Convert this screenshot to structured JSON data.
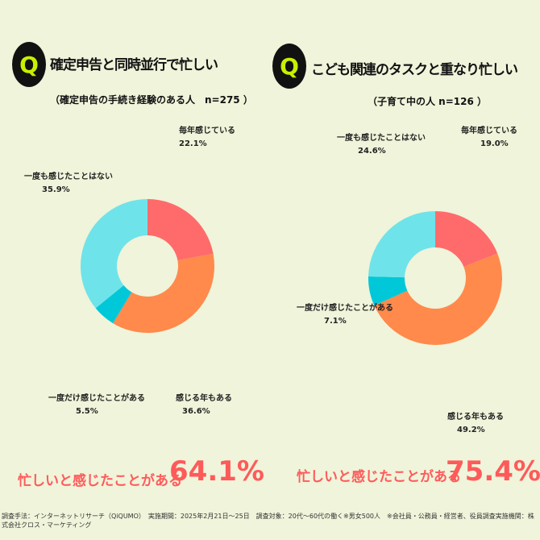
{
  "colors": {
    "background": "#eff4da",
    "accent": "#ff5a5a",
    "q_badge": "#111111",
    "q_letter": "#c8f000"
  },
  "chart_data": [
    {
      "type": "pie",
      "donut": true,
      "title": "確定申告と同時並行で忙しい",
      "subtitle": "（確定申告の手続き経験のある人　n=275 ）",
      "categories": [
        "毎年感じている",
        "感じる年もある",
        "一度だけ感じたことがある",
        "一度も感じたことはない"
      ],
      "values": [
        22.1,
        36.6,
        5.5,
        35.9
      ],
      "value_labels": [
        "22.1%",
        "36.6%",
        "5.5%",
        "35.9%"
      ],
      "colors": [
        "#ff6b6b",
        "#ff8a4c",
        "#00c8d8",
        "#6fe3ea"
      ],
      "summary_label": "忙しいと感じたことがある",
      "summary_value": "64.1%"
    },
    {
      "type": "pie",
      "donut": true,
      "title": "こども関連のタスクと重なり忙しい",
      "subtitle": "（子育て中の人 n=126 ）",
      "categories": [
        "毎年感じている",
        "感じる年もある",
        "一度だけ感じたことがある",
        "一度も感じたことはない"
      ],
      "values": [
        19.0,
        49.2,
        7.1,
        24.6
      ],
      "value_labels": [
        "19.0%",
        "49.2%",
        "7.1%",
        "24.6%"
      ],
      "colors": [
        "#ff6b6b",
        "#ff8a4c",
        "#00c8d8",
        "#6fe3ea"
      ],
      "summary_label": "忙しいと感じたことがある",
      "summary_value": "75.4%"
    }
  ],
  "q_letter": "Q",
  "footer": "調査手法：インターネットリサーチ（QiQUMO）　実施期間：2025年2月21日～25日　調査対象：20代～60代の働く※男女500人　※会社員・公務員・経営者、役員調査実施機関：株式会社クロス・マーケティング"
}
